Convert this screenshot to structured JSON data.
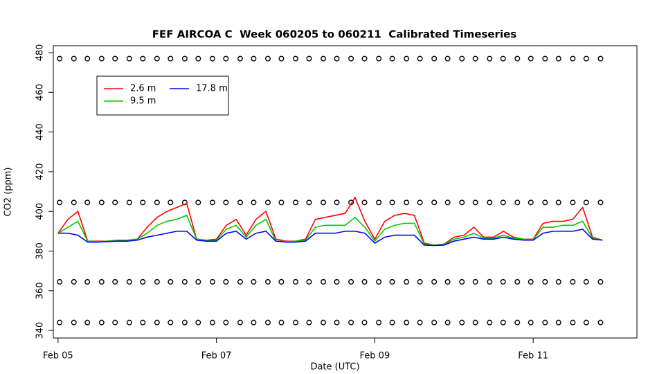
{
  "chart_data": {
    "type": "line",
    "title": "FEF AIRCOA C  Week 060205 to 060211  Calibrated Timeseries",
    "x_label": "Date (UTC)",
    "y_label": "CO2 (ppm)",
    "x": [
      5.0,
      5.125,
      5.25,
      5.375,
      5.5,
      5.625,
      5.75,
      5.875,
      6.0,
      6.125,
      6.25,
      6.375,
      6.5,
      6.625,
      6.75,
      6.875,
      7.0,
      7.125,
      7.25,
      7.375,
      7.5,
      7.625,
      7.75,
      7.875,
      8.0,
      8.125,
      8.25,
      8.375,
      8.5,
      8.625,
      8.75,
      8.875,
      9.0,
      9.125,
      9.25,
      9.375,
      9.5,
      9.625,
      9.75,
      9.875,
      10.0,
      10.125,
      10.25,
      10.375,
      10.5,
      10.625,
      10.75,
      10.875,
      11.0,
      11.125,
      11.25,
      11.375,
      11.5,
      11.625,
      11.75,
      11.875
    ],
    "series": [
      {
        "name": "2.6 m",
        "color": "#ff0000",
        "values": [
          389,
          396,
          400,
          385,
          385,
          385,
          385.5,
          385.5,
          386,
          392,
          397,
          400,
          402,
          404,
          386,
          385.5,
          386,
          393,
          396,
          388,
          396,
          400,
          386,
          385,
          385,
          386,
          396,
          397,
          398,
          399,
          407,
          395,
          386,
          395,
          398,
          399,
          398,
          384,
          383,
          383.5,
          387,
          388,
          392,
          387,
          387,
          390,
          387,
          386,
          386,
          394,
          395,
          395,
          396,
          402,
          387,
          385.5
        ]
      },
      {
        "name": "9.5 m",
        "color": "#00cc00",
        "values": [
          389,
          392,
          395,
          385,
          384.8,
          385,
          385.3,
          385.3,
          386,
          389,
          393,
          395,
          396,
          398,
          386,
          385.3,
          385.5,
          391,
          393,
          387,
          393,
          396,
          385,
          384.8,
          385,
          385.5,
          392,
          393,
          393,
          393,
          397,
          392,
          385,
          391,
          393,
          394,
          394,
          383.5,
          383,
          383.3,
          386,
          387,
          389,
          386.5,
          386.5,
          388,
          386.5,
          386,
          385.8,
          392,
          392,
          393,
          393,
          395,
          386.5,
          385.5
        ]
      },
      {
        "name": "17.8 m",
        "color": "#0000ff",
        "values": [
          389,
          389,
          388,
          384.5,
          384.5,
          384.8,
          385,
          385,
          385.5,
          387,
          388,
          389,
          390,
          390,
          385.5,
          385,
          385,
          389,
          390,
          386,
          389,
          390,
          385,
          384.5,
          384.5,
          385,
          389,
          389,
          389,
          390,
          390,
          389,
          384,
          387,
          388,
          388,
          388,
          383,
          382.8,
          383,
          385,
          386,
          387,
          386,
          386,
          387,
          386,
          385.5,
          385.5,
          389,
          390,
          390,
          390,
          391,
          386,
          385.5
        ]
      }
    ],
    "calibration": {
      "x": [
        5.02,
        5.2,
        5.37,
        5.55,
        5.72,
        5.9,
        6.07,
        6.25,
        6.42,
        6.6,
        6.77,
        6.95,
        7.12,
        7.3,
        7.47,
        7.65,
        7.82,
        8.0,
        8.17,
        8.35,
        8.52,
        8.7,
        8.87,
        9.05,
        9.22,
        9.4,
        9.57,
        9.75,
        9.92,
        10.1,
        10.27,
        10.45,
        10.62,
        10.8,
        10.97,
        11.15,
        11.32,
        11.5,
        11.67,
        11.85
      ],
      "levels": [
        344,
        364.5,
        404.5,
        477
      ]
    },
    "xlim": [
      4.94,
      12.31
    ],
    "ylim": [
      336.2,
      483.5
    ],
    "xticks": [
      {
        "value": 5,
        "label": "Feb 05"
      },
      {
        "value": 7,
        "label": "Feb 07"
      },
      {
        "value": 9,
        "label": "Feb 09"
      },
      {
        "value": 11,
        "label": "Feb 11"
      }
    ],
    "yticks": [
      340,
      360,
      380,
      400,
      420,
      440,
      460,
      480
    ],
    "legend": "top-left",
    "grid": false
  }
}
